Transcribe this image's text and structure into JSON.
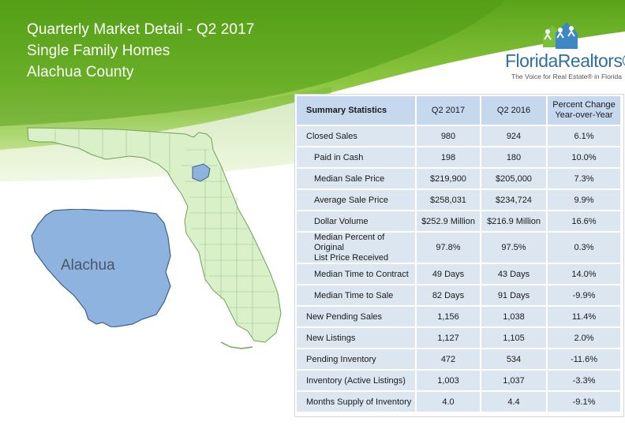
{
  "header": {
    "title_line1": "Quarterly Market Detail - Q2 2017",
    "title_line2": "Single Family Homes",
    "title_line3": "Alachua County"
  },
  "logo": {
    "name": "FloridaRealtors®",
    "tagline": "The Voice for Real Estate® in Florida",
    "accent_color": "#2f6f9f"
  },
  "map": {
    "county_label": "Alachua",
    "county_color": "#8fb3df",
    "state_color": "#d9f0c9"
  },
  "table": {
    "headers": {
      "label": "Summary Statistics",
      "col1": "Q2 2017",
      "col2": "Q2 2016",
      "col3_line1": "Percent Change",
      "col3_line2": "Year-over-Year"
    },
    "rows": [
      {
        "label": "Closed Sales",
        "v1": "980",
        "v2": "924",
        "v3": "6.1%"
      },
      {
        "label": "Paid in Cash",
        "v1": "198",
        "v2": "180",
        "v3": "10.0%"
      },
      {
        "label": "Median Sale Price",
        "v1": "$219,900",
        "v2": "$205,000",
        "v3": "7.3%"
      },
      {
        "label": "Average Sale Price",
        "v1": "$258,031",
        "v2": "$234,724",
        "v3": "9.9%"
      },
      {
        "label": "Dollar Volume",
        "v1": "$252.9 Million",
        "v2": "$216.9 Million",
        "v3": "16.6%"
      },
      {
        "label_line1": "Median Percent of Original",
        "label_line2": "List Price Received",
        "v1": "97.8%",
        "v2": "97.5%",
        "v3": "0.3%"
      },
      {
        "label": "Median Time to Contract",
        "v1": "49 Days",
        "v2": "43 Days",
        "v3": "14.0%"
      },
      {
        "label": "Median Time to Sale",
        "v1": "82 Days",
        "v2": "91 Days",
        "v3": "-9.9%"
      },
      {
        "label": "New Pending Sales",
        "v1": "1,156",
        "v2": "1,038",
        "v3": "11.4%"
      },
      {
        "label": "New Listings",
        "v1": "1,127",
        "v2": "1,105",
        "v3": "2.0%"
      },
      {
        "label": "Pending Inventory",
        "v1": "472",
        "v2": "534",
        "v3": "-11.6%"
      },
      {
        "label": "Inventory (Active Listings)",
        "v1": "1,003",
        "v2": "1,037",
        "v3": "-3.3%"
      },
      {
        "label": "Months Supply of Inventory",
        "v1": "4.0",
        "v2": "4.4",
        "v3": "-9.1%"
      }
    ]
  }
}
